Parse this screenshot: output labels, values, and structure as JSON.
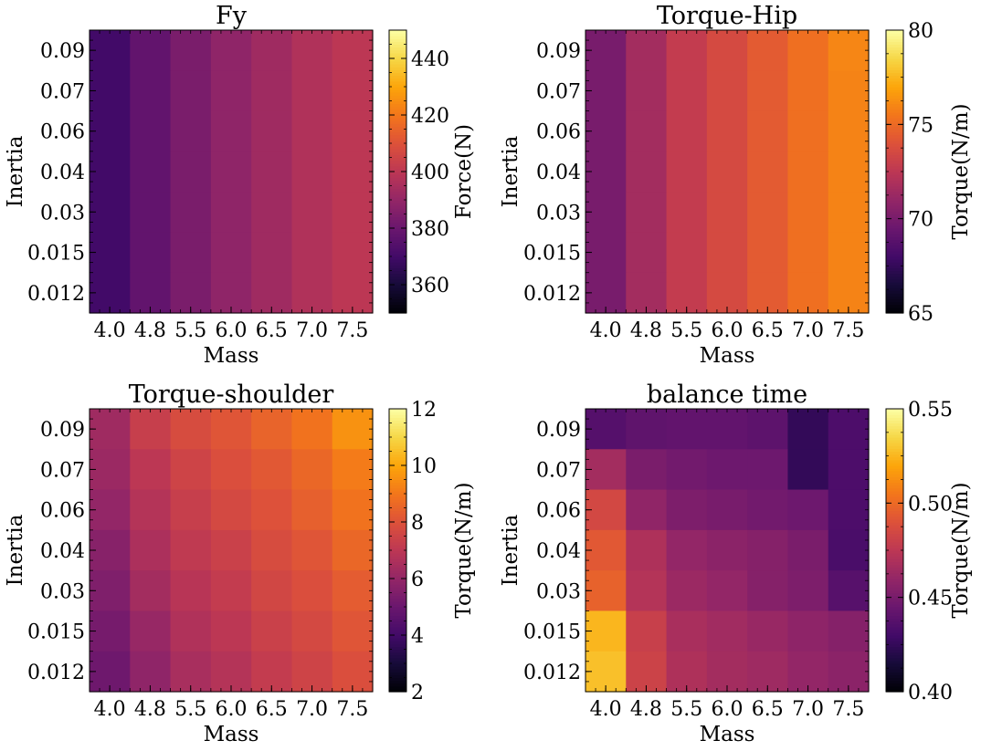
{
  "chart_data": [
    {
      "type": "heatmap",
      "title": "Fy",
      "xlabel": "Mass",
      "ylabel": "Inertia",
      "colorbar_label": "Force(N)",
      "colormap": "inferno",
      "x_categories": [
        "4.0",
        "4.8",
        "5.5",
        "6.0",
        "6.5",
        "7.0",
        "7.5"
      ],
      "y_categories": [
        "0.09",
        "0.07",
        "0.06",
        "0.04",
        "0.03",
        "0.015",
        "0.012"
      ],
      "vmin": 350,
      "vmax": 450,
      "colorbar_ticks": [
        360,
        380,
        400,
        420,
        440
      ],
      "values": [
        [
          370,
          378,
          384,
          389,
          393,
          397,
          400
        ],
        [
          370,
          378,
          384,
          389,
          393,
          397,
          400
        ],
        [
          370,
          378,
          384,
          389,
          393,
          397,
          400
        ],
        [
          370,
          378,
          384,
          389,
          393,
          397,
          400
        ],
        [
          370,
          378,
          384,
          389,
          393,
          397,
          400
        ],
        [
          370,
          378,
          384,
          389,
          393,
          397,
          400
        ],
        [
          370,
          378,
          384,
          389,
          393,
          397,
          400
        ]
      ]
    },
    {
      "type": "heatmap",
      "title": "Torque-Hip",
      "xlabel": "Mass",
      "ylabel": "Inertia",
      "colorbar_label": "Torque(N/m)",
      "colormap": "inferno",
      "x_categories": [
        "4.0",
        "4.8",
        "5.5",
        "6.0",
        "6.5",
        "7.0",
        "7.5"
      ],
      "y_categories": [
        "0.09",
        "0.07",
        "0.06",
        "0.04",
        "0.03",
        "0.015",
        "0.012"
      ],
      "vmin": 65,
      "vmax": 80,
      "colorbar_ticks": [
        65,
        70,
        75,
        80
      ],
      "values": [
        [
          70.0,
          71.6,
          72.8,
          73.6,
          74.4,
          75.2,
          76.0
        ],
        [
          70.0,
          71.6,
          72.8,
          73.6,
          74.4,
          75.2,
          75.9
        ],
        [
          70.0,
          71.6,
          72.8,
          73.6,
          74.4,
          75.2,
          75.9
        ],
        [
          70.0,
          71.6,
          72.8,
          73.6,
          74.4,
          75.2,
          75.9
        ],
        [
          70.0,
          71.6,
          72.8,
          73.6,
          74.4,
          75.2,
          75.9
        ],
        [
          70.0,
          71.6,
          72.8,
          73.6,
          74.4,
          75.2,
          75.9
        ],
        [
          70.0,
          71.6,
          72.8,
          73.6,
          74.4,
          75.2,
          75.9
        ]
      ]
    },
    {
      "type": "heatmap",
      "title": "Torque-shoulder",
      "xlabel": "Mass",
      "ylabel": "Inertia",
      "colorbar_label": "Torque(N/m)",
      "colormap": "inferno",
      "x_categories": [
        "4.0",
        "4.8",
        "5.5",
        "6.0",
        "6.5",
        "7.0",
        "7.5"
      ],
      "y_categories": [
        "0.09",
        "0.07",
        "0.06",
        "0.04",
        "0.03",
        "0.015",
        "0.012"
      ],
      "vmin": 2,
      "vmax": 12,
      "colorbar_ticks": [
        2,
        4,
        6,
        8,
        10,
        12
      ],
      "values": [
        [
          6.3,
          7.3,
          7.8,
          8.1,
          8.5,
          8.9,
          9.6
        ],
        [
          6.2,
          7.0,
          7.5,
          7.9,
          8.2,
          8.6,
          9.1
        ],
        [
          6.0,
          6.8,
          7.3,
          7.7,
          8.0,
          8.4,
          8.9
        ],
        [
          5.7,
          6.6,
          7.1,
          7.4,
          7.8,
          8.1,
          8.6
        ],
        [
          5.5,
          6.4,
          6.9,
          7.2,
          7.6,
          7.9,
          8.3
        ],
        [
          5.3,
          6.1,
          6.7,
          7.0,
          7.4,
          7.7,
          8.1
        ],
        [
          5.1,
          5.9,
          6.5,
          6.8,
          7.2,
          7.5,
          7.9
        ]
      ]
    },
    {
      "type": "heatmap",
      "title": "balance time",
      "xlabel": "Mass",
      "ylabel": "Inertia",
      "colorbar_label": "Torque(N/m)",
      "colormap": "inferno",
      "x_categories": [
        "4.0",
        "4.8",
        "5.5",
        "6.0",
        "6.5",
        "7.0",
        "7.5"
      ],
      "y_categories": [
        "0.09",
        "0.07",
        "0.06",
        "0.04",
        "0.03",
        "0.015",
        "0.012"
      ],
      "vmin": 0.4,
      "vmax": 0.55,
      "colorbar_ticks": [
        "0.40",
        "0.45",
        "0.50",
        "0.55"
      ],
      "values": [
        [
          0.437,
          0.441,
          0.442,
          0.442,
          0.44,
          0.425,
          0.434
        ],
        [
          0.466,
          0.451,
          0.448,
          0.446,
          0.446,
          0.425,
          0.434
        ],
        [
          0.485,
          0.459,
          0.452,
          0.45,
          0.448,
          0.446,
          0.434
        ],
        [
          0.493,
          0.47,
          0.46,
          0.457,
          0.455,
          0.451,
          0.433
        ],
        [
          0.497,
          0.472,
          0.463,
          0.46,
          0.455,
          0.452,
          0.438
        ],
        [
          0.525,
          0.48,
          0.468,
          0.465,
          0.462,
          0.458,
          0.455
        ],
        [
          0.528,
          0.482,
          0.47,
          0.466,
          0.464,
          0.46,
          0.457
        ]
      ]
    }
  ]
}
